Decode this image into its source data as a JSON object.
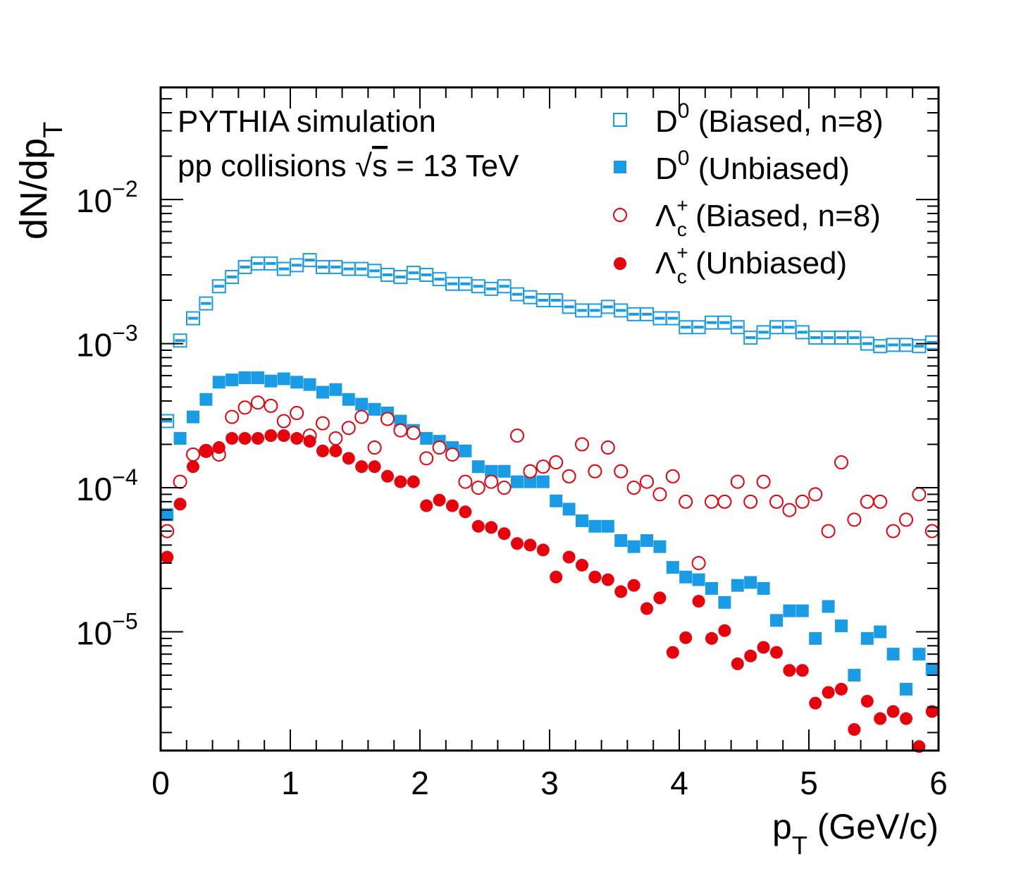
{
  "chart_data": {
    "type": "scatter",
    "title": "",
    "xlabel": "p",
    "xlabel_sub": "T",
    "xlabel_rest": " (GeV/c)",
    "ylabel": "dN/dp",
    "ylabel_sub": "T",
    "xlim": [
      0,
      6
    ],
    "ylim": [
      1.5e-06,
      0.06
    ],
    "yscale": "log",
    "bin_width": 0.1,
    "grid": false,
    "legend_position": "top-right",
    "x_ticks": [
      "0",
      "1",
      "2",
      "3",
      "4",
      "5",
      "6"
    ],
    "y_ticks": [
      {
        "base": "10",
        "exp": "−2"
      },
      {
        "base": "10",
        "exp": "−3"
      },
      {
        "base": "10",
        "exp": "−4"
      },
      {
        "base": "10",
        "exp": "−5"
      }
    ],
    "annotations": {
      "line1": "PYTHIA simulation",
      "line2_prefix": "pp collisions ",
      "line2_sqrt": "√",
      "line2_s": "s",
      "line2_suffix": " = 13 TeV"
    },
    "series": [
      {
        "name": "D0 (Biased, n=8)",
        "legend_main": "D",
        "legend_sup": "0",
        "legend_rest": " (Biased, n=8)",
        "marker": "open-square",
        "color": "#1a9be6",
        "x": [
          0.05,
          0.15,
          0.25,
          0.35,
          0.45,
          0.55,
          0.65,
          0.75,
          0.85,
          0.95,
          1.05,
          1.15,
          1.25,
          1.35,
          1.45,
          1.55,
          1.65,
          1.75,
          1.85,
          1.95,
          2.05,
          2.15,
          2.25,
          2.35,
          2.45,
          2.55,
          2.65,
          2.75,
          2.85,
          2.95,
          3.05,
          3.15,
          3.25,
          3.35,
          3.45,
          3.55,
          3.65,
          3.75,
          3.85,
          3.95,
          4.05,
          4.15,
          4.25,
          4.35,
          4.45,
          4.55,
          4.65,
          4.75,
          4.85,
          4.95,
          5.05,
          5.15,
          5.25,
          5.35,
          5.45,
          5.55,
          5.65,
          5.75,
          5.85,
          5.95
        ],
        "values": [
          0.00029,
          0.00105,
          0.0015,
          0.0019,
          0.0025,
          0.0029,
          0.0034,
          0.0036,
          0.0036,
          0.0033,
          0.0035,
          0.0038,
          0.0034,
          0.0034,
          0.0033,
          0.0033,
          0.0032,
          0.003,
          0.0029,
          0.0031,
          0.003,
          0.0028,
          0.0026,
          0.0026,
          0.0025,
          0.0024,
          0.0025,
          0.0022,
          0.0021,
          0.002,
          0.002,
          0.0018,
          0.0017,
          0.0017,
          0.0018,
          0.0017,
          0.0016,
          0.0016,
          0.0015,
          0.0015,
          0.0013,
          0.0013,
          0.0014,
          0.0014,
          0.0013,
          0.0011,
          0.0012,
          0.0013,
          0.0013,
          0.0012,
          0.0011,
          0.0011,
          0.0011,
          0.0011,
          0.001,
          0.00096,
          0.00098,
          0.00098,
          0.00096,
          0.00102
        ]
      },
      {
        "name": "D0 (Unbiased)",
        "legend_main": "D",
        "legend_sup": "0",
        "legend_rest": " (Unbiased)",
        "marker": "filled-square",
        "color": "#1a9be6",
        "x": [
          0.05,
          0.15,
          0.25,
          0.35,
          0.45,
          0.55,
          0.65,
          0.75,
          0.85,
          0.95,
          1.05,
          1.15,
          1.25,
          1.35,
          1.45,
          1.55,
          1.65,
          1.75,
          1.85,
          1.95,
          2.05,
          2.15,
          2.25,
          2.35,
          2.45,
          2.55,
          2.65,
          2.75,
          2.85,
          2.95,
          3.05,
          3.15,
          3.25,
          3.35,
          3.45,
          3.55,
          3.65,
          3.75,
          3.85,
          3.95,
          4.05,
          4.15,
          4.25,
          4.35,
          4.45,
          4.55,
          4.65,
          4.75,
          4.85,
          4.95,
          5.05,
          5.15,
          5.25,
          5.35,
          5.45,
          5.55,
          5.65,
          5.75,
          5.85,
          5.95
        ],
        "values": [
          6.5e-05,
          0.00022,
          0.00031,
          0.00041,
          0.00054,
          0.00056,
          0.00058,
          0.00058,
          0.00055,
          0.00057,
          0.00054,
          0.00052,
          0.00046,
          0.00048,
          0.00041,
          0.00038,
          0.00035,
          0.00033,
          0.00029,
          0.00025,
          0.00022,
          0.00021,
          0.00019,
          0.00018,
          0.00014,
          0.00013,
          0.00013,
          0.00011,
          0.00011,
          0.00011,
          8.1e-05,
          7.1e-05,
          5.9e-05,
          5.4e-05,
          5.4e-05,
          4.3e-05,
          3.9e-05,
          4.3e-05,
          3.9e-05,
          2.8e-05,
          2.4e-05,
          2.3e-05,
          2e-05,
          1.6e-05,
          2.1e-05,
          2.2e-05,
          2e-05,
          1.2e-05,
          1.4e-05,
          1.4e-05,
          9e-06,
          1.5e-05,
          1.1e-05,
          5e-06,
          9e-06,
          1e-05,
          7e-06,
          4e-06,
          7e-06,
          5.5e-06
        ]
      },
      {
        "name": "Λc+ (Biased, n=8)",
        "legend_main": "Λ",
        "legend_sup": "+",
        "legend_sub": "c",
        "legend_rest": " (Biased, n=8)",
        "marker": "open-circle",
        "color": "#e8000b",
        "x": [
          0.05,
          0.15,
          0.25,
          0.35,
          0.45,
          0.55,
          0.65,
          0.75,
          0.85,
          0.95,
          1.05,
          1.15,
          1.25,
          1.35,
          1.45,
          1.55,
          1.65,
          1.75,
          1.85,
          1.95,
          2.05,
          2.15,
          2.25,
          2.35,
          2.45,
          2.55,
          2.65,
          2.75,
          2.85,
          2.95,
          3.05,
          3.15,
          3.25,
          3.35,
          3.45,
          3.55,
          3.65,
          3.75,
          3.85,
          3.95,
          4.05,
          4.15,
          4.25,
          4.35,
          4.45,
          4.55,
          4.65,
          4.75,
          4.85,
          4.95,
          5.05,
          5.15,
          5.25,
          5.35,
          5.45,
          5.55,
          5.65,
          5.75,
          5.85,
          5.95
        ],
        "values": [
          5e-05,
          0.00011,
          0.00017,
          0.00018,
          0.00017,
          0.00031,
          0.00036,
          0.00039,
          0.00037,
          0.00029,
          0.00033,
          0.00023,
          0.00028,
          0.00022,
          0.00026,
          0.00031,
          0.00019,
          0.0003,
          0.00025,
          0.00024,
          0.00016,
          0.00019,
          0.00017,
          0.00011,
          0.0001,
          0.00011,
          0.0001,
          0.00023,
          0.00013,
          0.00014,
          0.00015,
          0.00012,
          0.0002,
          0.00013,
          0.00019,
          0.00013,
          0.0001,
          0.00011,
          9e-05,
          0.00012,
          8e-05,
          3e-05,
          8e-05,
          8e-05,
          0.00011,
          8e-05,
          0.00011,
          8e-05,
          7e-05,
          8e-05,
          9e-05,
          5e-05,
          0.00015,
          6e-05,
          8e-05,
          8e-05,
          5e-05,
          6e-05,
          9e-05,
          5e-05
        ]
      },
      {
        "name": "Λc+ (Unbiased)",
        "legend_main": "Λ",
        "legend_sup": "+",
        "legend_sub": "c",
        "legend_rest": " (Unbiased)",
        "marker": "filled-circle",
        "color": "#e8000b",
        "x": [
          0.05,
          0.15,
          0.25,
          0.35,
          0.45,
          0.55,
          0.65,
          0.75,
          0.85,
          0.95,
          1.05,
          1.15,
          1.25,
          1.35,
          1.45,
          1.55,
          1.65,
          1.75,
          1.85,
          1.95,
          2.05,
          2.15,
          2.25,
          2.35,
          2.45,
          2.55,
          2.65,
          2.75,
          2.85,
          2.95,
          3.05,
          3.15,
          3.25,
          3.35,
          3.45,
          3.55,
          3.65,
          3.75,
          3.85,
          3.95,
          4.05,
          4.15,
          4.25,
          4.35,
          4.45,
          4.55,
          4.65,
          4.75,
          4.85,
          4.95,
          5.05,
          5.15,
          5.25,
          5.35,
          5.45,
          5.55,
          5.65,
          5.75,
          5.85,
          5.95
        ],
        "values": [
          3.3e-05,
          7.7e-05,
          0.00014,
          0.00018,
          0.00019,
          0.00022,
          0.00022,
          0.00022,
          0.00023,
          0.00023,
          0.00022,
          0.00021,
          0.00018,
          0.00018,
          0.00016,
          0.00014,
          0.00014,
          0.00012,
          0.00011,
          0.00011,
          7.5e-05,
          8.2e-05,
          7.5e-05,
          6.8e-05,
          5.4e-05,
          5.3e-05,
          4.8e-05,
          4.1e-05,
          4e-05,
          3.7e-05,
          2.4e-05,
          3.3e-05,
          2.9e-05,
          2.4e-05,
          2.3e-05,
          1.9e-05,
          2.1e-05,
          1.45e-05,
          1.72e-05,
          7.2e-06,
          9.1e-06,
          1.63e-05,
          9e-06,
          1.02e-05,
          6e-06,
          6.8e-06,
          7.8e-06,
          7.2e-06,
          5.4e-06,
          5.4e-06,
          3.2e-06,
          3.8e-06,
          4e-06,
          2.1e-06,
          3.3e-06,
          2.5e-06,
          2.8e-06,
          2.5e-06,
          1.6e-06,
          2.8e-06
        ]
      }
    ]
  }
}
